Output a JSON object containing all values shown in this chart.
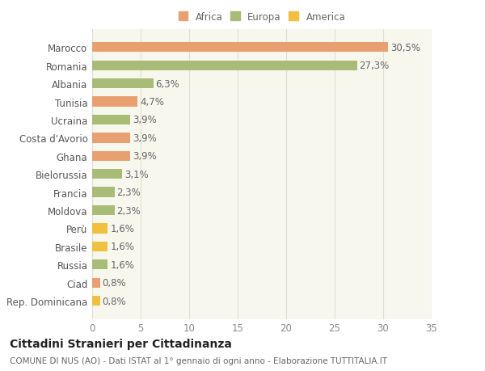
{
  "categories": [
    "Rep. Dominicana",
    "Ciad",
    "Russia",
    "Brasile",
    "Perù",
    "Moldova",
    "Francia",
    "Bielorussia",
    "Ghana",
    "Costa d'Avorio",
    "Ucraina",
    "Tunisia",
    "Albania",
    "Romania",
    "Marocco"
  ],
  "values": [
    0.8,
    0.8,
    1.6,
    1.6,
    1.6,
    2.3,
    2.3,
    3.1,
    3.9,
    3.9,
    3.9,
    4.7,
    6.3,
    27.3,
    30.5
  ],
  "colors": [
    "#f0c040",
    "#e8a070",
    "#a8bc78",
    "#f0c040",
    "#f0c040",
    "#a8bc78",
    "#a8bc78",
    "#a8bc78",
    "#e8a070",
    "#e8a070",
    "#a8bc78",
    "#e8a070",
    "#a8bc78",
    "#a8bc78",
    "#e8a070"
  ],
  "labels": [
    "0,8%",
    "0,8%",
    "1,6%",
    "1,6%",
    "1,6%",
    "2,3%",
    "2,3%",
    "3,1%",
    "3,9%",
    "3,9%",
    "3,9%",
    "4,7%",
    "6,3%",
    "27,3%",
    "30,5%"
  ],
  "legend": [
    {
      "label": "Africa",
      "color": "#e8a070"
    },
    {
      "label": "Europa",
      "color": "#a8bc78"
    },
    {
      "label": "America",
      "color": "#f0c040"
    }
  ],
  "title": "Cittadini Stranieri per Cittadinanza",
  "subtitle": "COMUNE DI NUS (AO) - Dati ISTAT al 1° gennaio di ogni anno - Elaborazione TUTTITALIA.IT",
  "xlim": [
    0,
    35
  ],
  "xticks": [
    0,
    5,
    10,
    15,
    20,
    25,
    30,
    35
  ],
  "bg_color": "#ffffff",
  "plot_bg_color": "#f7f7ee",
  "grid_color": "#e0e0d0",
  "bar_height": 0.55,
  "label_fontsize": 8.5,
  "tick_fontsize": 8.5,
  "title_fontsize": 10,
  "subtitle_fontsize": 7.5
}
